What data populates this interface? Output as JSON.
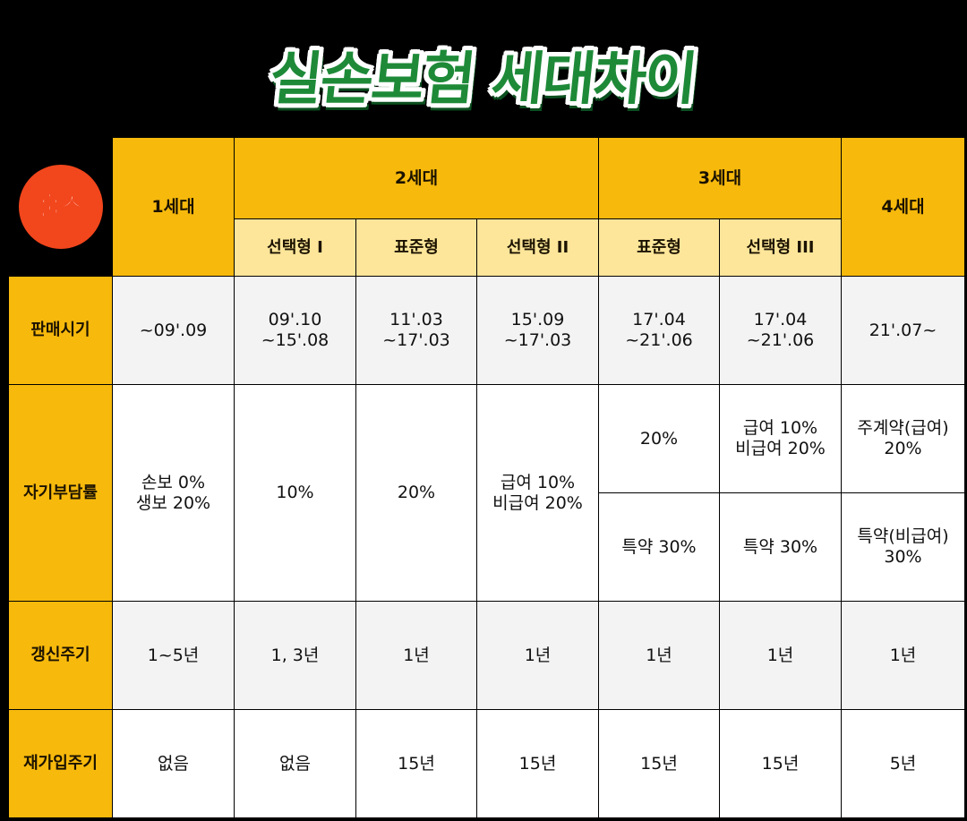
{
  "title": "실손보험 세대차이",
  "logo": {
    "text": "훌스",
    "color": "#f2461c"
  },
  "colors": {
    "header": "#f7b90c",
    "subheader": "#fde69a",
    "title_green": "#1e8a38"
  },
  "generations": [
    "1세대",
    "2세대",
    "3세대",
    "4세대"
  ],
  "subtypes": [
    "선택형 I",
    "표준형",
    "선택형 II",
    "표준형",
    "선택형 III"
  ],
  "rows": {
    "sale_period": {
      "label": "판매시기",
      "values": [
        "~09'.09",
        "09'.10\n~15'.08",
        "11'.03\n~17'.03",
        "15'.09\n~17'.03",
        "17'.04\n~21'.06",
        "17'.04\n~21'.06",
        "21'.07~"
      ]
    },
    "copay": {
      "label": "자기부담률",
      "gen1": "손보 0%\n생보 20%",
      "gen2_select1": "10%",
      "gen2_standard": "20%",
      "gen2_select2": "급여 10%\n비급여 20%",
      "gen3_standard_top": "20%",
      "gen3_select3_top": "급여 10%\n비급여 20%",
      "gen4_top": "주계약(급여)\n20%",
      "gen3_standard_bottom": "특약 30%",
      "gen3_select3_bottom": "특약 30%",
      "gen4_bottom": "특약(비급여)\n30%"
    },
    "renewal": {
      "label": "갱신주기",
      "values": [
        "1~5년",
        "1, 3년",
        "1년",
        "1년",
        "1년",
        "1년",
        "1년"
      ]
    },
    "reenroll": {
      "label": "재가입주기",
      "values": [
        "없음",
        "없음",
        "15년",
        "15년",
        "15년",
        "15년",
        "5년"
      ]
    }
  }
}
